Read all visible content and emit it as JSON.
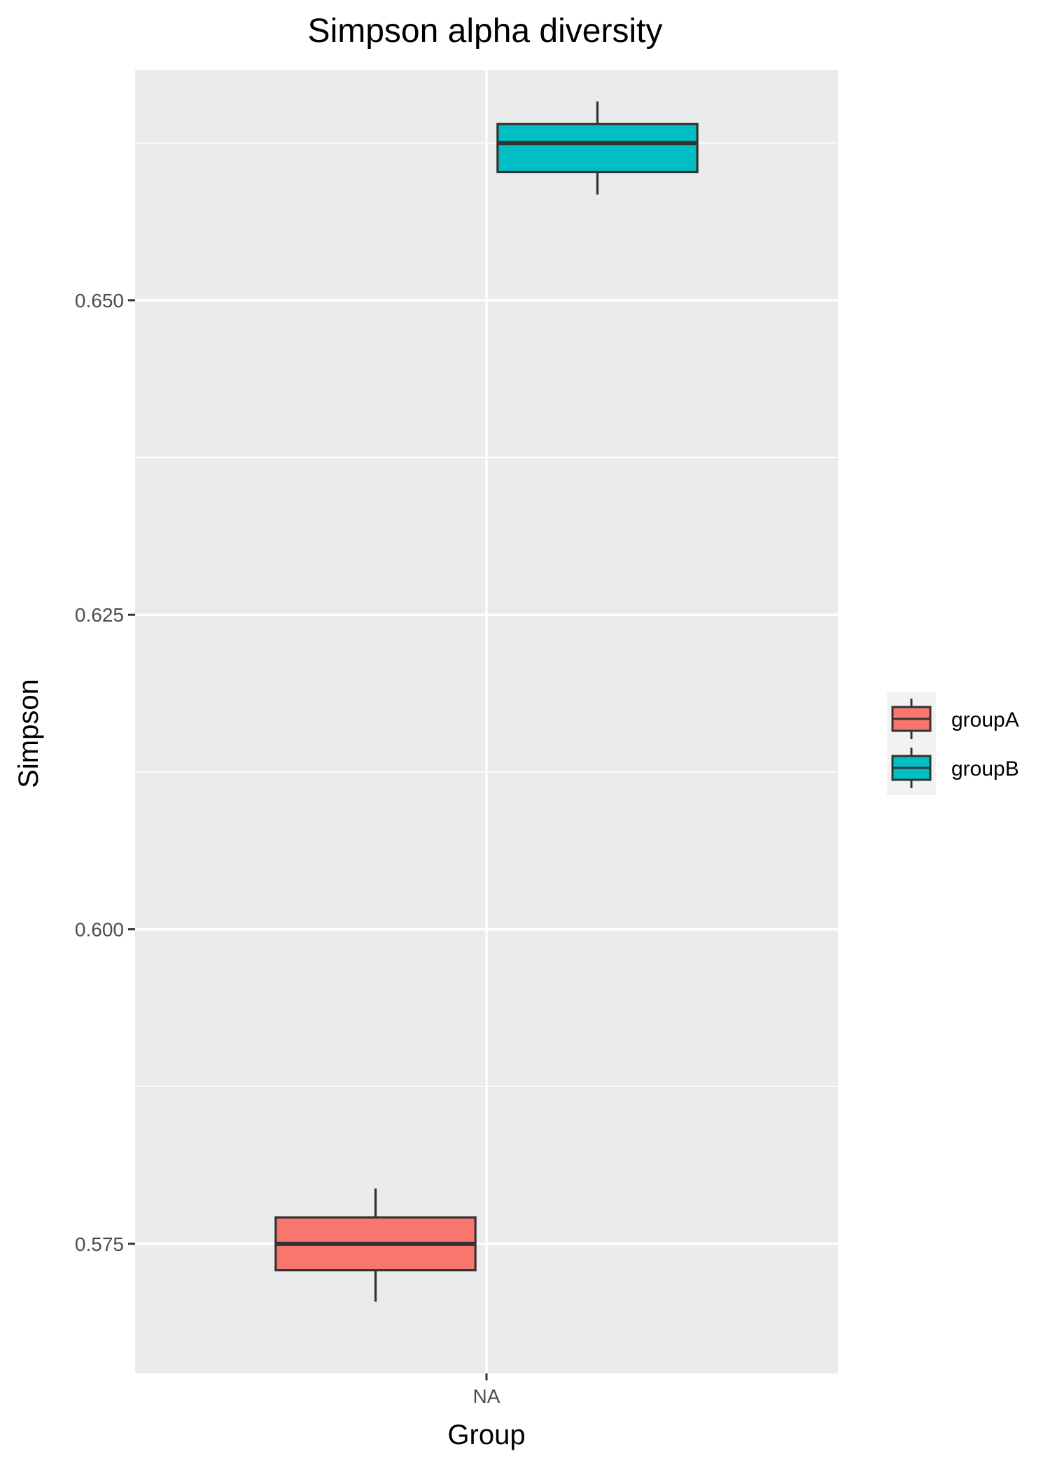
{
  "chart_data": {
    "type": "boxplot",
    "title": "Simpson alpha diversity",
    "xlabel": "Group",
    "ylabel": "Simpson",
    "categories": [
      "NA"
    ],
    "ylim": [
      0.5647,
      0.6683
    ],
    "yticks": [
      0.575,
      0.6,
      0.625,
      0.65
    ],
    "ytick_labels": [
      "0.575",
      "0.600",
      "0.625",
      "0.650"
    ],
    "grid": true,
    "legend_position": "right",
    "series": [
      {
        "name": "groupA",
        "color": "#F8766D",
        "category": "NA",
        "min": 0.5704,
        "q1": 0.5729,
        "median": 0.575,
        "q3": 0.5771,
        "max": 0.5794
      },
      {
        "name": "groupB",
        "color": "#00BFC4",
        "category": "NA",
        "min": 0.6584,
        "q1": 0.6602,
        "median": 0.6625,
        "q3": 0.664,
        "max": 0.6658
      }
    ],
    "colors": {
      "panel": "#EBEBEB",
      "grid": "#FFFFFF",
      "box_outline": "#333333",
      "legend_key_bg": "#F2F2F2"
    }
  }
}
